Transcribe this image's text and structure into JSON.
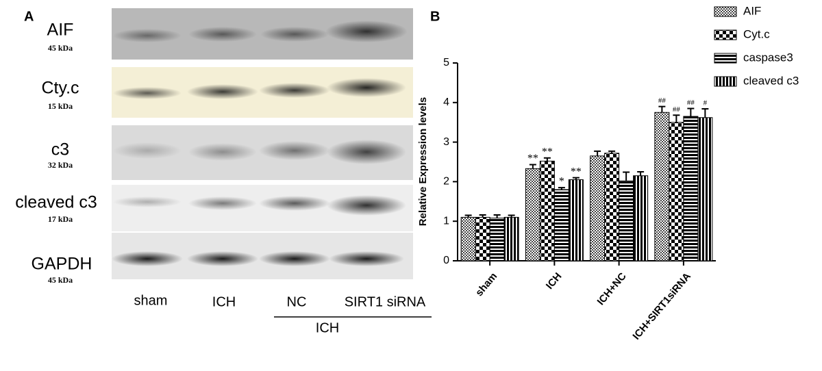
{
  "panel_a": {
    "label": "A",
    "rows": [
      {
        "name": "AIF",
        "kda": "45 kDa"
      },
      {
        "name": "Cty.c",
        "kda": "15 kDa"
      },
      {
        "name": "c3",
        "kda": "32 kDa"
      },
      {
        "name": "cleaved c3",
        "kda": "17 kDa"
      },
      {
        "name": "GAPDH",
        "kda": "45 kDa"
      }
    ],
    "lanes": [
      "sham",
      "ICH",
      "NC",
      "SIRT1 siRNA"
    ],
    "group": "ICH"
  },
  "chart_data": {
    "type": "bar",
    "panel_label": "B",
    "y_label": "Relative Expression levels",
    "categories": [
      "sham",
      "ICH",
      "ICH+NC",
      "ICH+SIRT1siRNA"
    ],
    "series": [
      {
        "name": "AIF",
        "color": "#000000",
        "pattern": "fine-check",
        "values": [
          1.1,
          2.33,
          2.65,
          3.75
        ],
        "errors": [
          0.05,
          0.1,
          0.12,
          0.15
        ],
        "annotations": [
          null,
          "**",
          null,
          "##"
        ]
      },
      {
        "name": "Cyt.c",
        "color": "#000000",
        "pattern": "check",
        "values": [
          1.1,
          2.52,
          2.72,
          3.5
        ],
        "errors": [
          0.06,
          0.08,
          0.05,
          0.18
        ],
        "annotations": [
          null,
          "**",
          null,
          "##"
        ]
      },
      {
        "name": "caspase3",
        "color": "#000000",
        "pattern": "h-stripes",
        "values": [
          1.08,
          1.8,
          2.02,
          3.65
        ],
        "errors": [
          0.08,
          0.05,
          0.22,
          0.2
        ],
        "annotations": [
          null,
          "*",
          null,
          "##"
        ]
      },
      {
        "name": "cleaved c3",
        "color": "#000000",
        "pattern": "v-stripes",
        "values": [
          1.1,
          2.05,
          2.15,
          3.62
        ],
        "errors": [
          0.05,
          0.05,
          0.1,
          0.22
        ],
        "annotations": [
          null,
          "**",
          null,
          "#"
        ]
      }
    ],
    "ylim": [
      0,
      5
    ],
    "yticks": [
      0,
      1,
      2,
      3,
      4,
      5
    ],
    "grid": false,
    "legend": "top-right"
  }
}
